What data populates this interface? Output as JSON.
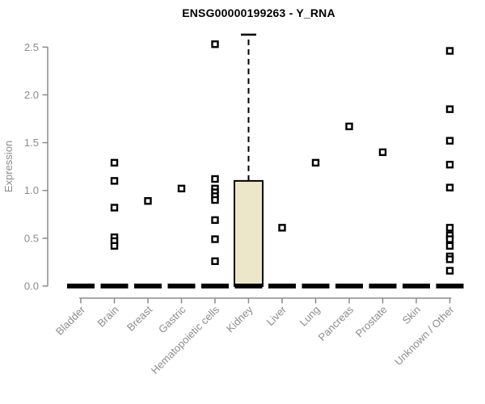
{
  "colors": {
    "title": "#000000",
    "axis": "#8C8C8C",
    "tick_label": "#8C8C8C",
    "box_fill": "#ECE7C9",
    "box_stroke": "#000000",
    "median": "#000000",
    "outlier_stroke": "#000000",
    "outlier_fill": "#FFFFFF",
    "background": "#FFFFFF"
  },
  "chart_data": {
    "type": "boxplot",
    "title": "ENSG00000199263 - Y_RNA",
    "xlabel": "",
    "ylabel": "Expression",
    "ylim": [
      0,
      2.65
    ],
    "yticks": [
      0.0,
      0.5,
      1.0,
      1.5,
      2.0,
      2.5
    ],
    "grid": false,
    "legend": "none",
    "categories": [
      "Bladder",
      "Brain",
      "Breast",
      "Gastric",
      "Hematopoietic cells",
      "Kidney",
      "Liver",
      "Lung",
      "Pancreas",
      "Prostate",
      "Skin",
      "Unknown / Other"
    ],
    "boxes": [
      {
        "category": "Bladder",
        "whisker_low": 0,
        "q1": 0,
        "median": 0,
        "q3": 0,
        "whisker_high": 0,
        "outliers": []
      },
      {
        "category": "Brain",
        "whisker_low": 0,
        "q1": 0,
        "median": 0,
        "q3": 0,
        "whisker_high": 0,
        "outliers": [
          1.29,
          1.1,
          0.82,
          0.51,
          0.47,
          0.42
        ]
      },
      {
        "category": "Breast",
        "whisker_low": 0,
        "q1": 0,
        "median": 0,
        "q3": 0,
        "whisker_high": 0,
        "outliers": [
          0.89
        ]
      },
      {
        "category": "Gastric",
        "whisker_low": 0,
        "q1": 0,
        "median": 0,
        "q3": 0,
        "whisker_high": 0,
        "outliers": [
          1.02
        ]
      },
      {
        "category": "Hematopoietic cells",
        "whisker_low": 0,
        "q1": 0,
        "median": 0,
        "q3": 0,
        "whisker_high": 0,
        "outliers": [
          2.53,
          1.12,
          1.02,
          0.98,
          0.94,
          0.9,
          0.69,
          0.49,
          0.26
        ]
      },
      {
        "category": "Kidney",
        "whisker_low": 0,
        "q1": 0,
        "median": 0,
        "q3": 1.1,
        "whisker_high": 2.63,
        "outliers": []
      },
      {
        "category": "Liver",
        "whisker_low": 0,
        "q1": 0,
        "median": 0,
        "q3": 0,
        "whisker_high": 0,
        "outliers": [
          0.61
        ]
      },
      {
        "category": "Lung",
        "whisker_low": 0,
        "q1": 0,
        "median": 0,
        "q3": 0,
        "whisker_high": 0,
        "outliers": [
          1.29
        ]
      },
      {
        "category": "Pancreas",
        "whisker_low": 0,
        "q1": 0,
        "median": 0,
        "q3": 0,
        "whisker_high": 0,
        "outliers": [
          1.67
        ]
      },
      {
        "category": "Prostate",
        "whisker_low": 0,
        "q1": 0,
        "median": 0,
        "q3": 0,
        "whisker_high": 0,
        "outliers": [
          1.4
        ]
      },
      {
        "category": "Skin",
        "whisker_low": 0,
        "q1": 0,
        "median": 0,
        "q3": 0,
        "whisker_high": 0,
        "outliers": []
      },
      {
        "category": "Unknown / Other",
        "whisker_low": 0,
        "q1": 0,
        "median": 0,
        "q3": 0,
        "whisker_high": 0,
        "outliers": [
          2.46,
          1.85,
          1.52,
          1.27,
          1.03,
          0.61,
          0.53,
          0.49,
          0.42,
          0.31,
          0.28,
          0.16
        ]
      }
    ]
  }
}
